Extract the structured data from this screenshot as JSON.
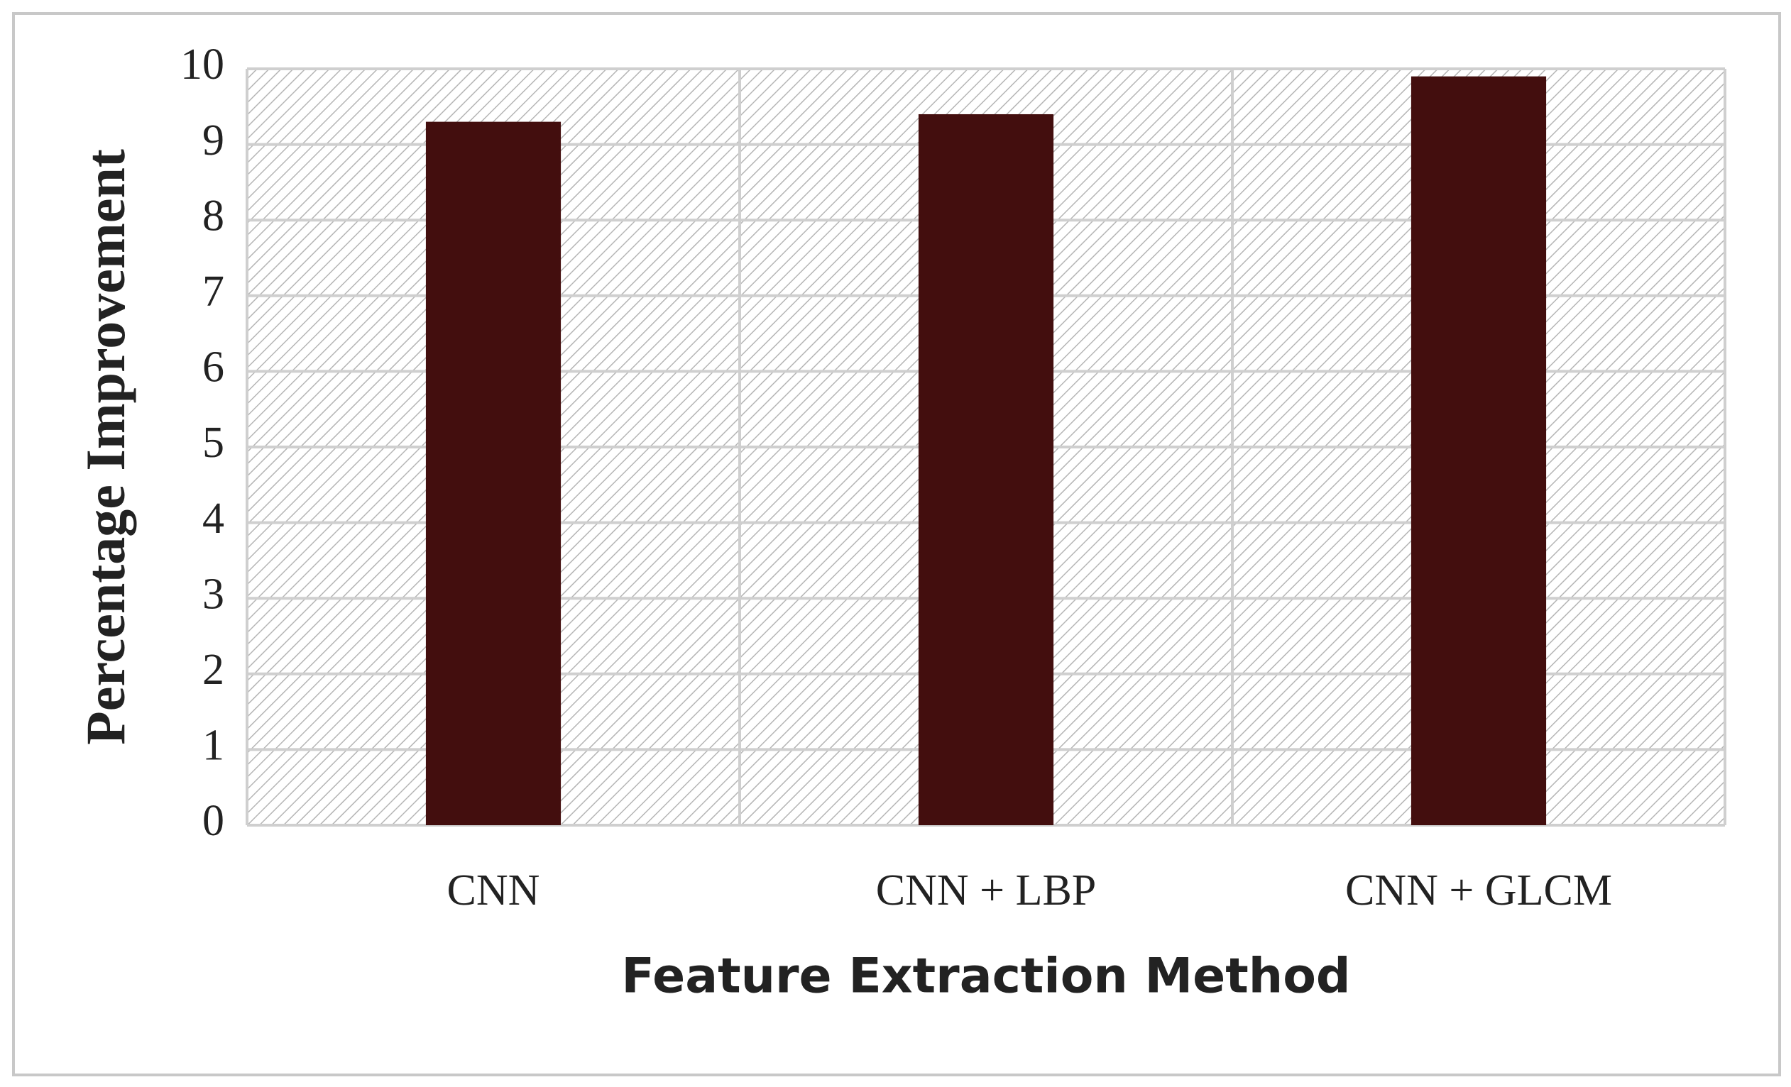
{
  "chart_data": {
    "type": "bar",
    "x_label": "Feature Extraction Method",
    "y_label": "Percentage Improvement",
    "categories": [
      "CNN",
      "CNN + LBP",
      "CNN + GLCM"
    ],
    "values": [
      9.3,
      9.4,
      9.9
    ],
    "color": "#430e0e",
    "ylim": [
      0,
      10
    ],
    "yticks": [
      0,
      1,
      2,
      3,
      4,
      5,
      6,
      7,
      8,
      9,
      10
    ],
    "grid": true
  }
}
